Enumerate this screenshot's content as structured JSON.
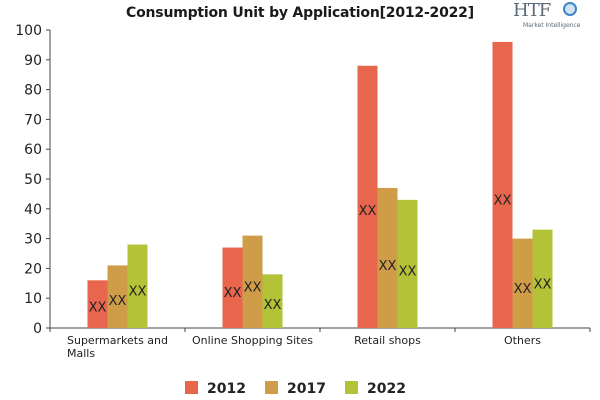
{
  "chart_data": {
    "type": "bar",
    "title": "Consumption Unit by  Application[2012-2022]",
    "categories": [
      "Supermarkets and Malls",
      "Online Shopping Sites",
      "Retail shops",
      "Others"
    ],
    "category_lines": [
      [
        "Supermarkets and",
        "Malls"
      ],
      [
        "Online Shopping Sites"
      ],
      [
        "Retail shops"
      ],
      [
        "Others"
      ]
    ],
    "series": [
      {
        "name": "2012",
        "color": "#e8664e",
        "values": [
          16,
          27,
          88,
          96
        ]
      },
      {
        "name": "2017",
        "color": "#cf9c48",
        "values": [
          21,
          31,
          47,
          30
        ]
      },
      {
        "name": "2022",
        "color": "#b3c236",
        "values": [
          28,
          18,
          43,
          33
        ]
      }
    ],
    "data_labels": [
      [
        "XX",
        "XX",
        "XX"
      ],
      [
        "XX",
        "XX",
        "XX"
      ],
      [
        "XX",
        "XX",
        "XX"
      ],
      [
        "XX",
        "XX",
        "XX"
      ]
    ],
    "ylim": [
      0,
      100
    ],
    "yticks": [
      0,
      10,
      20,
      30,
      40,
      50,
      60,
      70,
      80,
      90,
      100
    ],
    "xlabel": "",
    "ylabel": "",
    "grid": false,
    "legend_position": "bottom"
  },
  "logo": {
    "mark": "HTF",
    "subtitle": "Market Intelligence"
  }
}
